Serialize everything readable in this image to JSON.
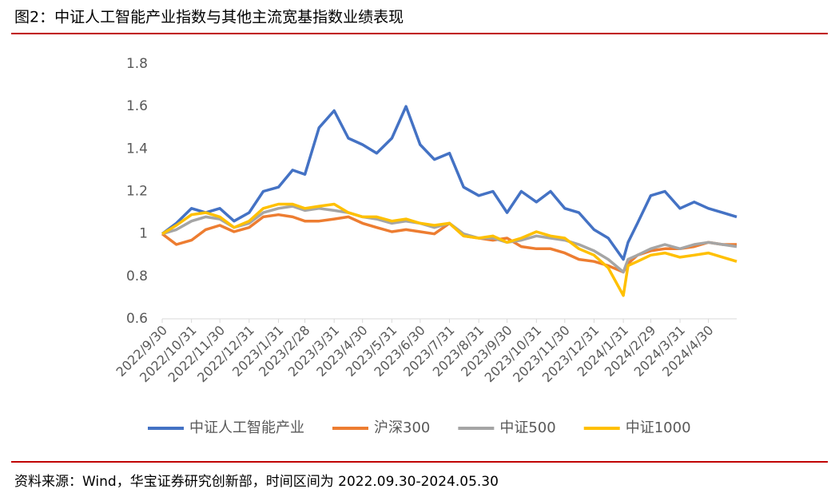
{
  "chart_data": {
    "type": "line",
    "title": "图2：中证人工智能产业指数与其他主流宽基指数业绩表现",
    "note": "资料来源：Wind，华宝证券研究创新部，时间区间为 2022.09.30-2024.05.30",
    "x": [
      "2022/9/30",
      "2022/10/15",
      "2022/10/31",
      "2022/11/15",
      "2022/11/30",
      "2022/12/15",
      "2022/12/31",
      "2023/1/15",
      "2023/1/31",
      "2023/2/15",
      "2023/2/28",
      "2023/3/15",
      "2023/3/31",
      "2023/4/15",
      "2023/4/30",
      "2023/5/15",
      "2023/5/31",
      "2023/6/15",
      "2023/6/30",
      "2023/7/15",
      "2023/7/31",
      "2023/8/15",
      "2023/8/31",
      "2023/9/15",
      "2023/9/30",
      "2023/10/15",
      "2023/10/31",
      "2023/11/15",
      "2023/11/30",
      "2023/12/15",
      "2023/12/31",
      "2024/1/15",
      "2024/1/31",
      "2024/2/5",
      "2024/2/15",
      "2024/2/29",
      "2024/3/15",
      "2024/3/31",
      "2024/4/15",
      "2024/4/30",
      "2024/5/15",
      "2024/5/30"
    ],
    "series": [
      {
        "name": "中证人工智能产业",
        "color": "#4472c4",
        "values": [
          1.0,
          1.05,
          1.12,
          1.1,
          1.12,
          1.06,
          1.1,
          1.2,
          1.22,
          1.3,
          1.28,
          1.5,
          1.58,
          1.45,
          1.42,
          1.38,
          1.45,
          1.6,
          1.42,
          1.35,
          1.38,
          1.22,
          1.18,
          1.2,
          1.1,
          1.2,
          1.15,
          1.2,
          1.12,
          1.1,
          1.02,
          0.98,
          0.88,
          0.96,
          1.05,
          1.18,
          1.2,
          1.12,
          1.15,
          1.12,
          1.1,
          1.08
        ]
      },
      {
        "name": "沪深300",
        "color": "#ed7d31",
        "values": [
          1.0,
          0.95,
          0.97,
          1.02,
          1.04,
          1.01,
          1.03,
          1.08,
          1.09,
          1.08,
          1.06,
          1.06,
          1.07,
          1.08,
          1.05,
          1.03,
          1.01,
          1.02,
          1.01,
          1.0,
          1.05,
          0.99,
          0.98,
          0.97,
          0.98,
          0.94,
          0.93,
          0.93,
          0.91,
          0.88,
          0.87,
          0.85,
          0.82,
          0.86,
          0.9,
          0.92,
          0.93,
          0.93,
          0.94,
          0.96,
          0.95,
          0.95
        ]
      },
      {
        "name": "中证500",
        "color": "#a5a5a5",
        "values": [
          1.0,
          1.02,
          1.06,
          1.08,
          1.07,
          1.03,
          1.05,
          1.1,
          1.12,
          1.13,
          1.11,
          1.12,
          1.11,
          1.1,
          1.08,
          1.07,
          1.05,
          1.06,
          1.05,
          1.03,
          1.05,
          1.0,
          0.98,
          0.98,
          0.96,
          0.97,
          0.99,
          0.98,
          0.97,
          0.95,
          0.92,
          0.88,
          0.82,
          0.88,
          0.9,
          0.93,
          0.95,
          0.93,
          0.95,
          0.96,
          0.95,
          0.94
        ]
      },
      {
        "name": "中证1000",
        "color": "#ffc000",
        "values": [
          1.0,
          1.04,
          1.09,
          1.1,
          1.08,
          1.03,
          1.06,
          1.12,
          1.14,
          1.14,
          1.12,
          1.13,
          1.14,
          1.1,
          1.08,
          1.08,
          1.06,
          1.07,
          1.05,
          1.04,
          1.05,
          0.99,
          0.98,
          0.99,
          0.96,
          0.98,
          1.01,
          0.99,
          0.98,
          0.93,
          0.9,
          0.84,
          0.71,
          0.85,
          0.87,
          0.9,
          0.91,
          0.89,
          0.9,
          0.91,
          0.89,
          0.87
        ]
      }
    ],
    "xlim": [
      "2022/9/30",
      "2024/5/30"
    ],
    "xticks": [
      "2022/9/30",
      "2022/10/31",
      "2022/11/30",
      "2022/12/31",
      "2023/1/31",
      "2023/2/28",
      "2023/3/31",
      "2023/4/30",
      "2023/5/31",
      "2023/6/30",
      "2023/7/31",
      "2023/8/31",
      "2023/9/30",
      "2023/10/31",
      "2023/11/30",
      "2023/12/31",
      "2024/1/31",
      "2024/2/29",
      "2024/3/31",
      "2024/4/30"
    ],
    "ylim": [
      0.6,
      1.8
    ],
    "yticks": [
      0.6,
      0.8,
      1,
      1.2,
      1.4,
      1.6,
      1.8
    ],
    "grid": false
  }
}
